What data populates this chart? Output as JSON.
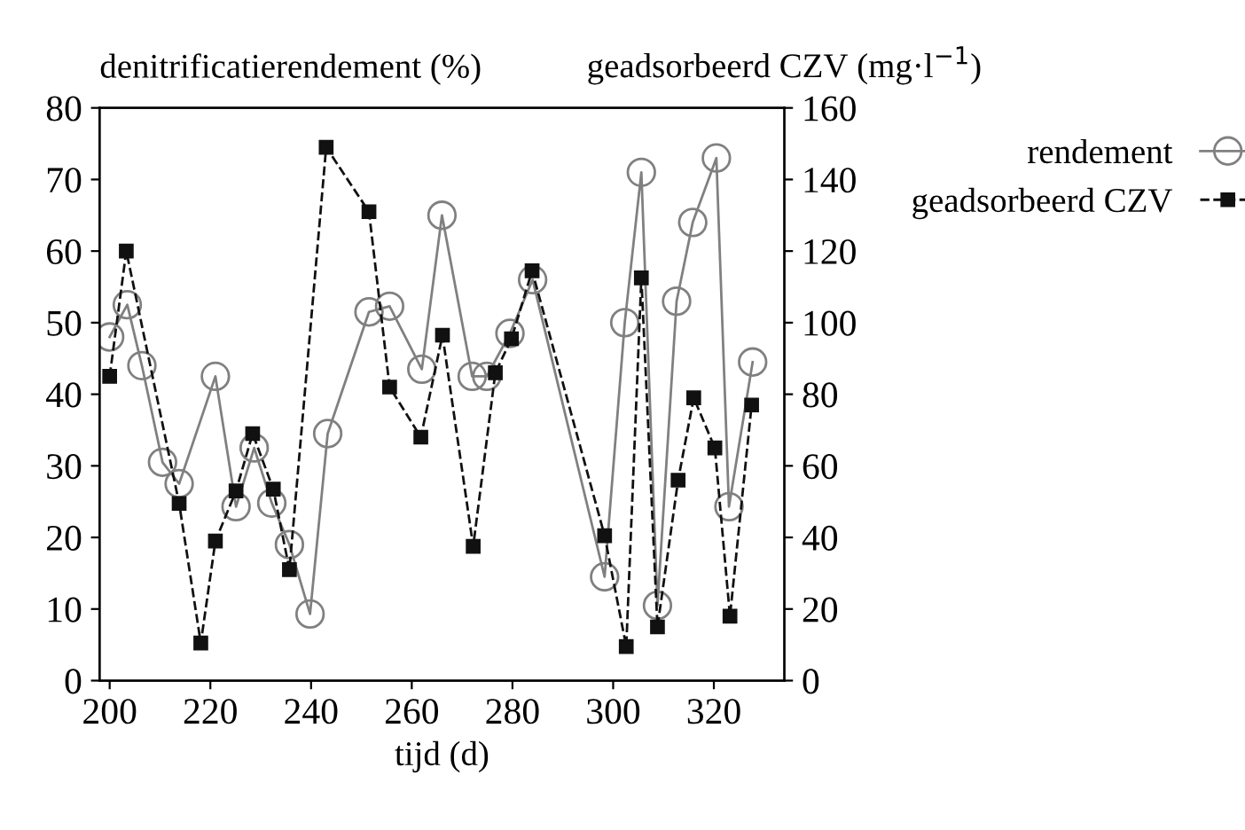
{
  "chart_data": {
    "type": "line",
    "xlabel": "tijd (d)",
    "ylabel": "denitrificatierendement (%)",
    "y2label": "geadsorbeerd CZV (mg·l$^{−1}$)",
    "series": [
      {
        "name": "rendement",
        "color": "#808080",
        "marker": "circle",
        "line_style": "solid",
        "x": [
          200,
          203.5,
          206.4,
          210.5,
          213.8,
          221,
          225.1,
          228.7,
          232.2,
          235.7,
          239.8,
          243.3,
          251.5,
          255.6,
          262,
          266,
          272,
          274.9,
          279.5,
          284,
          298.3,
          302.3,
          305.6,
          308.8,
          312.6,
          315.8,
          320.5,
          323,
          327.7
        ],
        "values": [
          48,
          52.5,
          44,
          30.5,
          27.5,
          42.5,
          24.3,
          32.5,
          24.8,
          19,
          9.3,
          34.5,
          51.5,
          52.3,
          43.5,
          65,
          42.5,
          42.5,
          48.5,
          56,
          14.5,
          50,
          71,
          10.5,
          53,
          64,
          73,
          24.3,
          44.5
        ]
      },
      {
        "name": "geadsorbeerd CZV",
        "color": "#111111",
        "marker": "square",
        "line_style": "dashed",
        "axis": "y2",
        "x": [
          200,
          203.3,
          213.8,
          218.1,
          221,
          225.1,
          228.4,
          232.5,
          235.7,
          243,
          251.5,
          255.6,
          261.8,
          266.1,
          272.2,
          276.6,
          279.8,
          283.9,
          298.3,
          302.6,
          305.6,
          308.8,
          312.9,
          316,
          320.2,
          323.2,
          327.5
        ],
        "values": [
          85,
          120,
          49.5,
          10.5,
          39,
          53,
          69,
          53.5,
          31,
          149,
          131,
          82,
          68,
          96.5,
          37.5,
          86,
          95.5,
          114.5,
          40.5,
          9.5,
          112.5,
          15,
          56,
          79,
          65,
          18,
          77
        ]
      }
    ],
    "xlim": [
      198,
      334
    ],
    "xticks": [
      200,
      220,
      240,
      260,
      280,
      300,
      320
    ],
    "ylim": [
      0,
      80
    ],
    "yticks": [
      0,
      10,
      20,
      30,
      40,
      50,
      60,
      70,
      80
    ],
    "y2lim": [
      0,
      160
    ],
    "y2ticks": [
      0,
      20,
      40,
      60,
      80,
      100,
      120,
      140,
      160
    ],
    "grid": false,
    "legend": "top right"
  }
}
